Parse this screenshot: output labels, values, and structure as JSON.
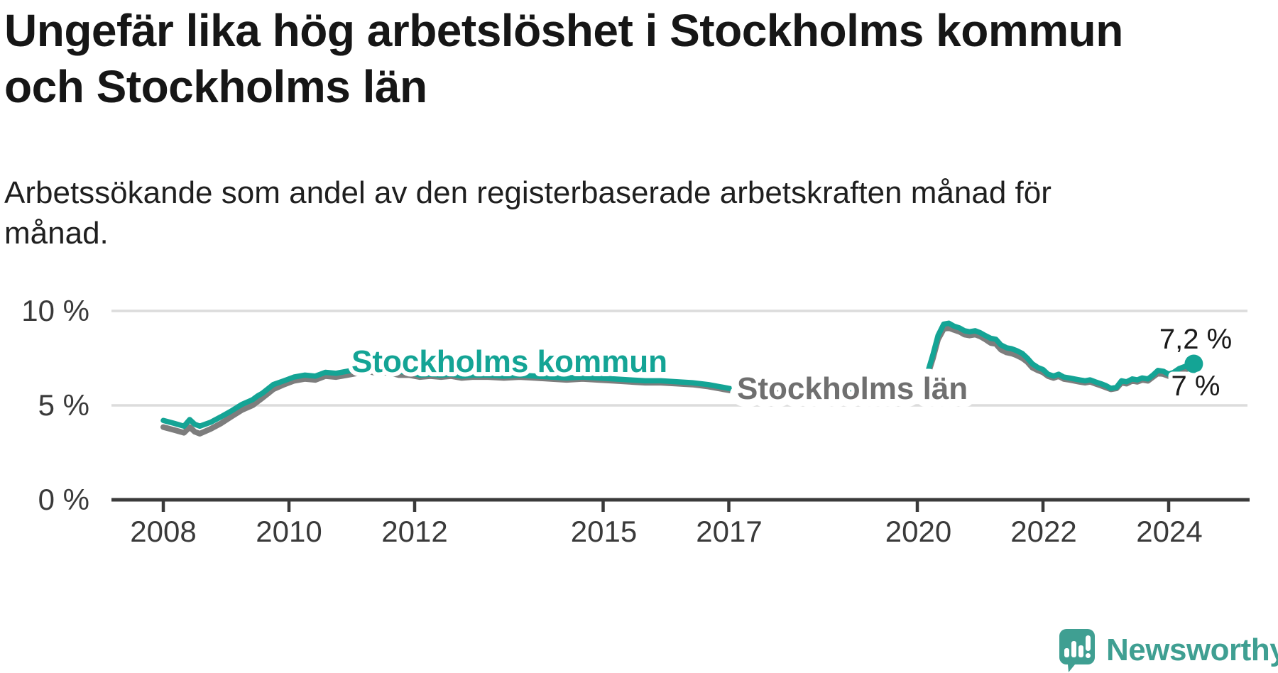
{
  "header": {
    "title": "Ungefär lika hög arbetslöshet i Stockholms kommun\noch Stockholms län",
    "subtitle": "Arbetssökande som andel av den registerbaserade arbetskraften månad för\nmånad."
  },
  "branding": {
    "name": "Newsworthy",
    "color": "#3f9f92"
  },
  "chart_data": {
    "type": "line",
    "unit": "%",
    "grid": "horizontal",
    "legend_position": "inline-labels",
    "xlim": [
      2007.8,
      2024.9
    ],
    "ylim": [
      0,
      10.5
    ],
    "x_ticks": [
      "2008",
      "2010",
      "2012",
      "2015",
      "2017",
      "2020",
      "2022",
      "2024"
    ],
    "x_tick_years": [
      2008,
      2010,
      2012,
      2015,
      2017,
      2020,
      2022,
      2024
    ],
    "y_ticks": [
      {
        "value": 0,
        "label": "0 %"
      },
      {
        "value": 5,
        "label": "5 %"
      },
      {
        "value": 10,
        "label": "10 %"
      }
    ],
    "series": [
      {
        "name": "Stockholms kommun",
        "color": "#14a495",
        "end_label": "7,2 %",
        "end_value": 7.2,
        "points": [
          [
            2008.0,
            4.2
          ],
          [
            2008.17,
            4.05
          ],
          [
            2008.33,
            3.9
          ],
          [
            2008.42,
            4.25
          ],
          [
            2008.5,
            4.0
          ],
          [
            2008.58,
            3.9
          ],
          [
            2008.75,
            4.1
          ],
          [
            2008.92,
            4.4
          ],
          [
            2009.08,
            4.7
          ],
          [
            2009.25,
            5.05
          ],
          [
            2009.42,
            5.3
          ],
          [
            2009.5,
            5.5
          ],
          [
            2009.58,
            5.65
          ],
          [
            2009.75,
            6.1
          ],
          [
            2009.92,
            6.3
          ],
          [
            2010.08,
            6.5
          ],
          [
            2010.25,
            6.6
          ],
          [
            2010.42,
            6.55
          ],
          [
            2010.58,
            6.75
          ],
          [
            2010.75,
            6.7
          ],
          [
            2010.92,
            6.8
          ],
          [
            2011.08,
            6.9
          ],
          [
            2011.25,
            7.0
          ],
          [
            2011.42,
            6.9
          ],
          [
            2011.58,
            6.95
          ],
          [
            2011.75,
            6.8
          ],
          [
            2011.92,
            6.75
          ],
          [
            2012.08,
            6.6
          ],
          [
            2012.25,
            6.65
          ],
          [
            2012.42,
            6.6
          ],
          [
            2012.58,
            6.65
          ],
          [
            2012.75,
            6.55
          ],
          [
            2012.92,
            6.6
          ],
          [
            2013.17,
            6.6
          ],
          [
            2013.42,
            6.55
          ],
          [
            2013.67,
            6.6
          ],
          [
            2013.92,
            6.55
          ],
          [
            2014.17,
            6.5
          ],
          [
            2014.42,
            6.45
          ],
          [
            2014.67,
            6.5
          ],
          [
            2014.92,
            6.45
          ],
          [
            2015.17,
            6.4
          ],
          [
            2015.42,
            6.35
          ],
          [
            2015.67,
            6.3
          ],
          [
            2015.92,
            6.3
          ],
          [
            2016.17,
            6.25
          ],
          [
            2016.42,
            6.2
          ],
          [
            2016.67,
            6.1
          ],
          [
            2016.92,
            5.95
          ],
          [
            2017.08,
            5.85
          ],
          [
            2017.25,
            6.0
          ],
          [
            2017.5,
            5.95
          ],
          [
            2017.75,
            6.0
          ],
          [
            2017.92,
            5.9
          ],
          [
            2018.17,
            5.95
          ],
          [
            2018.42,
            5.9
          ],
          [
            2018.67,
            5.95
          ],
          [
            2018.92,
            5.9
          ],
          [
            2019.17,
            5.95
          ],
          [
            2019.42,
            6.0
          ],
          [
            2019.67,
            6.05
          ],
          [
            2019.92,
            6.1
          ],
          [
            2020.08,
            6.3
          ],
          [
            2020.17,
            6.8
          ],
          [
            2020.25,
            7.7
          ],
          [
            2020.33,
            8.7
          ],
          [
            2020.42,
            9.3
          ],
          [
            2020.5,
            9.35
          ],
          [
            2020.58,
            9.2
          ],
          [
            2020.67,
            9.1
          ],
          [
            2020.75,
            8.95
          ],
          [
            2020.83,
            8.9
          ],
          [
            2020.92,
            8.95
          ],
          [
            2021.0,
            8.85
          ],
          [
            2021.08,
            8.7
          ],
          [
            2021.17,
            8.55
          ],
          [
            2021.25,
            8.5
          ],
          [
            2021.33,
            8.2
          ],
          [
            2021.42,
            8.05
          ],
          [
            2021.5,
            8.0
          ],
          [
            2021.58,
            7.9
          ],
          [
            2021.67,
            7.75
          ],
          [
            2021.75,
            7.5
          ],
          [
            2021.83,
            7.2
          ],
          [
            2021.92,
            7.0
          ],
          [
            2022.0,
            6.9
          ],
          [
            2022.08,
            6.65
          ],
          [
            2022.17,
            6.55
          ],
          [
            2022.25,
            6.65
          ],
          [
            2022.33,
            6.5
          ],
          [
            2022.42,
            6.45
          ],
          [
            2022.5,
            6.4
          ],
          [
            2022.58,
            6.35
          ],
          [
            2022.67,
            6.3
          ],
          [
            2022.75,
            6.35
          ],
          [
            2022.83,
            6.25
          ],
          [
            2022.92,
            6.15
          ],
          [
            2023.0,
            6.05
          ],
          [
            2023.08,
            5.9
          ],
          [
            2023.17,
            5.95
          ],
          [
            2023.25,
            6.3
          ],
          [
            2023.33,
            6.25
          ],
          [
            2023.42,
            6.4
          ],
          [
            2023.5,
            6.35
          ],
          [
            2023.58,
            6.45
          ],
          [
            2023.67,
            6.4
          ],
          [
            2023.75,
            6.6
          ],
          [
            2023.83,
            6.85
          ],
          [
            2023.92,
            6.8
          ],
          [
            2024.0,
            6.65
          ],
          [
            2024.08,
            6.75
          ],
          [
            2024.17,
            6.95
          ],
          [
            2024.25,
            7.05
          ],
          [
            2024.4,
            7.2
          ]
        ]
      },
      {
        "name": "Stockholms län",
        "color": "#7d7d7d",
        "end_label": "7 %",
        "end_value": 7.0,
        "points": [
          [
            2008.0,
            3.85
          ],
          [
            2008.17,
            3.7
          ],
          [
            2008.33,
            3.55
          ],
          [
            2008.42,
            3.85
          ],
          [
            2008.5,
            3.6
          ],
          [
            2008.58,
            3.5
          ],
          [
            2008.75,
            3.75
          ],
          [
            2008.92,
            4.05
          ],
          [
            2009.08,
            4.4
          ],
          [
            2009.25,
            4.75
          ],
          [
            2009.42,
            5.0
          ],
          [
            2009.5,
            5.2
          ],
          [
            2009.58,
            5.4
          ],
          [
            2009.75,
            5.85
          ],
          [
            2009.92,
            6.1
          ],
          [
            2010.08,
            6.3
          ],
          [
            2010.25,
            6.4
          ],
          [
            2010.42,
            6.35
          ],
          [
            2010.58,
            6.55
          ],
          [
            2010.75,
            6.5
          ],
          [
            2010.92,
            6.6
          ],
          [
            2011.08,
            6.7
          ],
          [
            2011.25,
            6.8
          ],
          [
            2011.42,
            6.7
          ],
          [
            2011.58,
            6.75
          ],
          [
            2011.75,
            6.6
          ],
          [
            2011.92,
            6.6
          ],
          [
            2012.08,
            6.5
          ],
          [
            2012.25,
            6.55
          ],
          [
            2012.42,
            6.5
          ],
          [
            2012.58,
            6.55
          ],
          [
            2012.75,
            6.45
          ],
          [
            2012.92,
            6.5
          ],
          [
            2013.17,
            6.5
          ],
          [
            2013.42,
            6.45
          ],
          [
            2013.67,
            6.5
          ],
          [
            2013.92,
            6.45
          ],
          [
            2014.17,
            6.4
          ],
          [
            2014.42,
            6.35
          ],
          [
            2014.67,
            6.4
          ],
          [
            2014.92,
            6.35
          ],
          [
            2015.17,
            6.3
          ],
          [
            2015.42,
            6.25
          ],
          [
            2015.67,
            6.2
          ],
          [
            2015.92,
            6.2
          ],
          [
            2016.17,
            6.15
          ],
          [
            2016.42,
            6.1
          ],
          [
            2016.67,
            6.0
          ],
          [
            2016.92,
            5.85
          ],
          [
            2017.08,
            5.75
          ],
          [
            2017.25,
            5.9
          ],
          [
            2017.5,
            5.85
          ],
          [
            2017.75,
            5.9
          ],
          [
            2017.92,
            5.8
          ],
          [
            2018.17,
            5.85
          ],
          [
            2018.42,
            5.8
          ],
          [
            2018.67,
            5.85
          ],
          [
            2018.92,
            5.8
          ],
          [
            2019.17,
            5.85
          ],
          [
            2019.42,
            5.9
          ],
          [
            2019.67,
            5.95
          ],
          [
            2019.92,
            6.0
          ],
          [
            2020.08,
            6.2
          ],
          [
            2020.17,
            6.65
          ],
          [
            2020.25,
            7.5
          ],
          [
            2020.33,
            8.5
          ],
          [
            2020.42,
            9.05
          ],
          [
            2020.5,
            9.1
          ],
          [
            2020.58,
            9.0
          ],
          [
            2020.67,
            8.9
          ],
          [
            2020.75,
            8.75
          ],
          [
            2020.83,
            8.7
          ],
          [
            2020.92,
            8.75
          ],
          [
            2021.0,
            8.65
          ],
          [
            2021.08,
            8.5
          ],
          [
            2021.17,
            8.3
          ],
          [
            2021.25,
            8.25
          ],
          [
            2021.33,
            7.95
          ],
          [
            2021.42,
            7.8
          ],
          [
            2021.5,
            7.75
          ],
          [
            2021.58,
            7.65
          ],
          [
            2021.67,
            7.5
          ],
          [
            2021.75,
            7.3
          ],
          [
            2021.83,
            7.0
          ],
          [
            2021.92,
            6.85
          ],
          [
            2022.0,
            6.75
          ],
          [
            2022.08,
            6.55
          ],
          [
            2022.17,
            6.45
          ],
          [
            2022.25,
            6.55
          ],
          [
            2022.33,
            6.4
          ],
          [
            2022.42,
            6.35
          ],
          [
            2022.5,
            6.3
          ],
          [
            2022.58,
            6.25
          ],
          [
            2022.67,
            6.2
          ],
          [
            2022.75,
            6.25
          ],
          [
            2022.83,
            6.15
          ],
          [
            2022.92,
            6.05
          ],
          [
            2023.0,
            5.95
          ],
          [
            2023.08,
            5.85
          ],
          [
            2023.17,
            5.9
          ],
          [
            2023.25,
            6.2
          ],
          [
            2023.33,
            6.15
          ],
          [
            2023.42,
            6.3
          ],
          [
            2023.5,
            6.25
          ],
          [
            2023.58,
            6.35
          ],
          [
            2023.67,
            6.3
          ],
          [
            2023.75,
            6.5
          ],
          [
            2023.83,
            6.7
          ],
          [
            2023.92,
            6.65
          ],
          [
            2024.0,
            6.55
          ],
          [
            2024.08,
            6.6
          ],
          [
            2024.17,
            6.8
          ],
          [
            2024.25,
            6.9
          ],
          [
            2024.4,
            7.0
          ]
        ]
      }
    ]
  }
}
